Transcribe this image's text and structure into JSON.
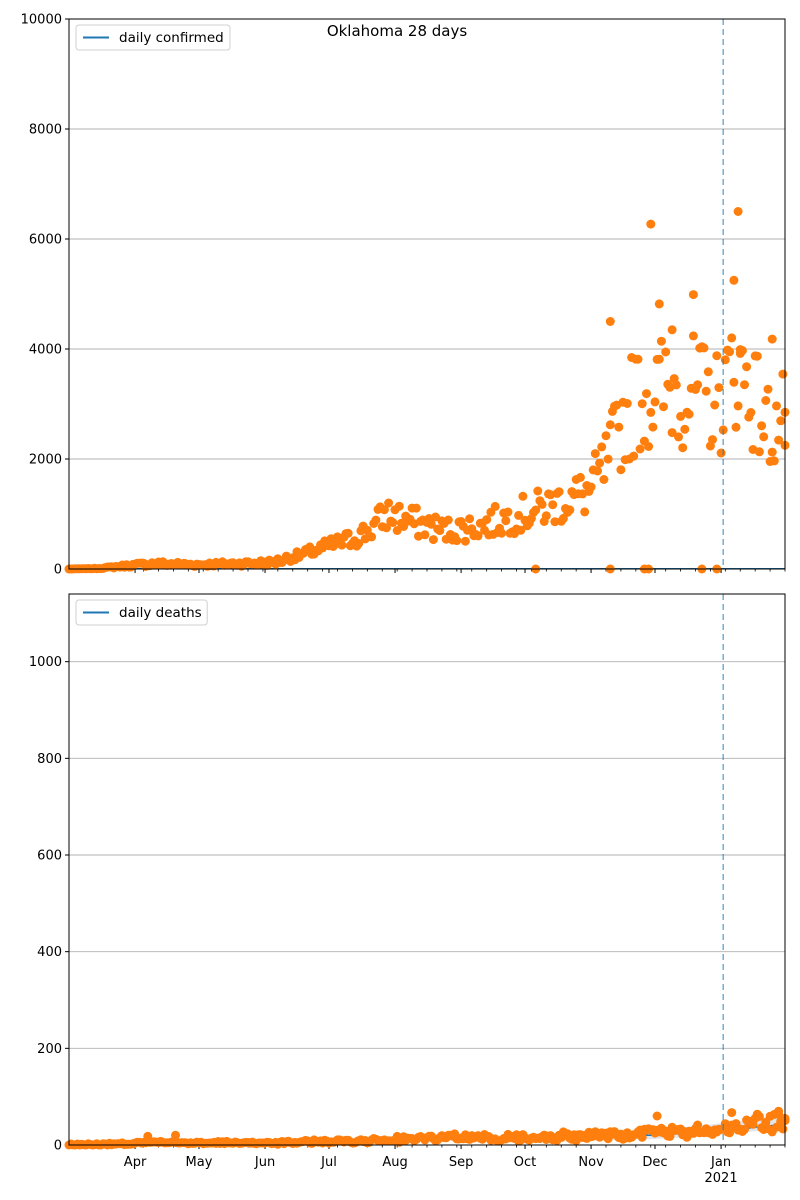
{
  "figure": {
    "title": "Oklahoma 28 days"
  },
  "colors": {
    "points": "#ff7f0e",
    "line": "#1f77b4",
    "marker_line": "#1f77b4",
    "band": "#c8d2de",
    "grid": "#b0b0b0"
  },
  "chart_data": [
    {
      "type": "scatter",
      "title": "Oklahoma 28 days",
      "xlabel": "",
      "ylabel": "",
      "x_range": [
        "2020-03-01",
        "2021-01-31"
      ],
      "ylim": [
        0,
        10000
      ],
      "y_ticks": [
        0,
        2000,
        4000,
        6000,
        8000,
        10000
      ],
      "grid": "y",
      "legend": {
        "position": "top-left",
        "entries": [
          "daily confirmed"
        ]
      },
      "vertical_marker": "2021-01-02",
      "series": [
        {
          "name": "daily confirmed",
          "kind": "line",
          "values_note": "model line near zero"
        }
      ],
      "anchors": [
        [
          "2020-03-01",
          0
        ],
        [
          "2020-03-15",
          10
        ],
        [
          "2020-03-28",
          60
        ],
        [
          "2020-04-10",
          100
        ],
        [
          "2020-05-01",
          80
        ],
        [
          "2020-05-20",
          100
        ],
        [
          "2020-06-05",
          120
        ],
        [
          "2020-06-20",
          280
        ],
        [
          "2020-07-01",
          420
        ],
        [
          "2020-07-10",
          520
        ],
        [
          "2020-07-20",
          700
        ],
        [
          "2020-07-28",
          1000
        ],
        [
          "2020-08-10",
          850
        ],
        [
          "2020-08-25",
          700
        ],
        [
          "2020-09-10",
          780
        ],
        [
          "2020-09-25",
          950
        ],
        [
          "2020-10-05",
          1050
        ],
        [
          "2020-10-20",
          1250
        ],
        [
          "2020-10-31",
          1400
        ],
        [
          "2020-11-08",
          1900
        ],
        [
          "2020-11-15",
          2600
        ],
        [
          "2020-11-22",
          3100
        ],
        [
          "2020-12-01",
          3200
        ],
        [
          "2020-12-10",
          3300
        ],
        [
          "2020-12-20",
          3200
        ],
        [
          "2020-12-31",
          3000
        ],
        [
          "2021-01-08",
          3700
        ],
        [
          "2021-01-15",
          3300
        ],
        [
          "2021-01-22",
          2600
        ],
        [
          "2021-01-31",
          2700
        ]
      ],
      "highlights": [
        [
          "2020-11-10",
          4500
        ],
        [
          "2020-11-29",
          6270
        ],
        [
          "2020-12-03",
          4820
        ],
        [
          "2020-12-09",
          4350
        ],
        [
          "2020-12-19",
          4990
        ],
        [
          "2021-01-07",
          5250
        ],
        [
          "2021-01-09",
          6500
        ],
        [
          "2021-01-10",
          3920
        ],
        [
          "2021-01-25",
          4180
        ],
        [
          "2020-11-26",
          0
        ],
        [
          "2020-10-06",
          0
        ],
        [
          "2020-11-10",
          0
        ],
        [
          "2020-12-23",
          0
        ],
        [
          "2020-12-30",
          0
        ],
        [
          "2020-11-28",
          0
        ],
        [
          "2021-01-31",
          2850
        ]
      ]
    },
    {
      "type": "scatter",
      "title": "",
      "xlabel": "",
      "ylabel": "",
      "x_range": [
        "2020-03-01",
        "2021-01-31"
      ],
      "ylim": [
        0,
        1140
      ],
      "y_ticks": [
        0,
        200,
        400,
        600,
        800,
        1000
      ],
      "grid": "y",
      "legend": {
        "position": "top-left",
        "entries": [
          "daily deaths"
        ]
      },
      "vertical_marker": "2021-01-02",
      "x_ticks": [
        "Apr",
        "May",
        "Jun",
        "Jul",
        "Aug",
        "Sep",
        "Oct",
        "Nov",
        "Dec",
        "Jan"
      ],
      "x_ticks_year": "2021",
      "series": [
        {
          "name": "daily deaths",
          "kind": "line",
          "values_note": "model line with confidence band"
        }
      ],
      "anchors": [
        [
          "2020-03-01",
          0
        ],
        [
          "2020-03-25",
          2
        ],
        [
          "2020-04-10",
          6
        ],
        [
          "2020-05-01",
          5
        ],
        [
          "2020-06-01",
          4
        ],
        [
          "2020-06-20",
          6
        ],
        [
          "2020-07-15",
          9
        ],
        [
          "2020-08-05",
          13
        ],
        [
          "2020-09-01",
          15
        ],
        [
          "2020-10-01",
          16
        ],
        [
          "2020-10-25",
          18
        ],
        [
          "2020-11-15",
          22
        ],
        [
          "2020-12-01",
          24
        ],
        [
          "2020-12-20",
          30
        ],
        [
          "2021-01-05",
          36
        ],
        [
          "2021-01-20",
          45
        ],
        [
          "2021-01-31",
          50
        ]
      ],
      "highlights": [
        [
          "2020-04-07",
          18
        ],
        [
          "2020-04-20",
          20
        ],
        [
          "2020-12-02",
          60
        ],
        [
          "2021-01-06",
          67
        ],
        [
          "2021-01-28",
          70
        ],
        [
          "2021-01-31",
          55
        ]
      ]
    }
  ]
}
